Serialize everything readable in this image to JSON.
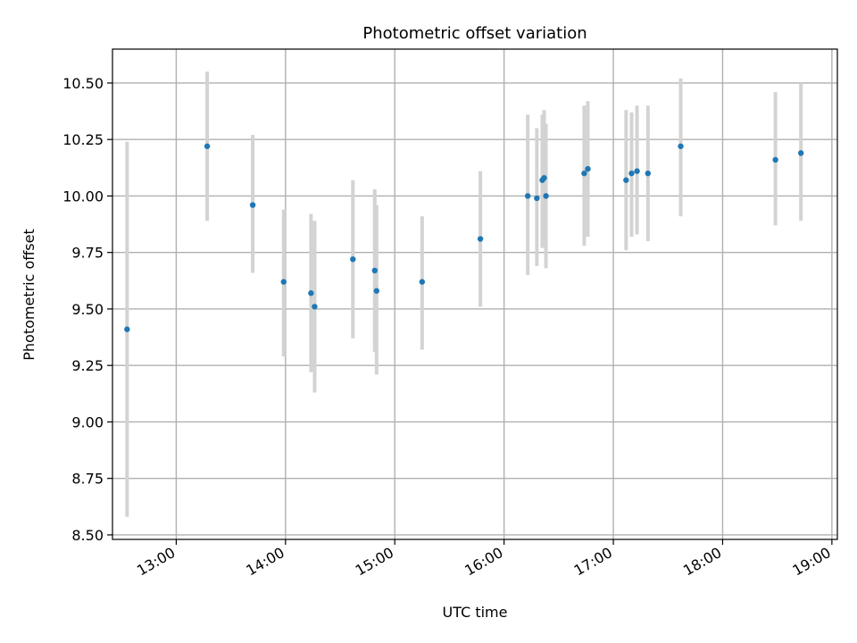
{
  "chart_data": {
    "type": "scatter",
    "title": "Photometric offset variation",
    "xlabel": "UTC time",
    "ylabel": "Photometric offset",
    "x_unit": "hour of day (UTC)",
    "xlim": [
      "12:25",
      "19:03"
    ],
    "ylim": [
      8.48,
      10.65
    ],
    "x_ticks": [
      {
        "value": "13:00",
        "label": "13:00"
      },
      {
        "value": "14:00",
        "label": "14:00"
      },
      {
        "value": "15:00",
        "label": "15:00"
      },
      {
        "value": "16:00",
        "label": "16:00"
      },
      {
        "value": "17:00",
        "label": "17:00"
      },
      {
        "value": "18:00",
        "label": "18:00"
      },
      {
        "value": "19:00",
        "label": "19:00"
      }
    ],
    "y_ticks": [
      {
        "value": 8.5,
        "label": "8.50"
      },
      {
        "value": 8.75,
        "label": "8.75"
      },
      {
        "value": 9.0,
        "label": "9.00"
      },
      {
        "value": 9.25,
        "label": "9.25"
      },
      {
        "value": 9.5,
        "label": "9.50"
      },
      {
        "value": 9.75,
        "label": "9.75"
      },
      {
        "value": 10.0,
        "label": "10.00"
      },
      {
        "value": 10.25,
        "label": "10.25"
      },
      {
        "value": 10.5,
        "label": "10.50"
      }
    ],
    "grid": true,
    "marker_color": "#1f77b4",
    "errorbar_color": "#d3d3d3",
    "points": [
      {
        "x": "12:33",
        "y": 9.41,
        "yerr_low": 8.58,
        "yerr_high": 10.24
      },
      {
        "x": "13:17",
        "y": 10.22,
        "yerr_low": 9.89,
        "yerr_high": 10.55
      },
      {
        "x": "13:42",
        "y": 9.96,
        "yerr_low": 9.66,
        "yerr_high": 10.27
      },
      {
        "x": "13:59",
        "y": 9.62,
        "yerr_low": 9.29,
        "yerr_high": 9.94
      },
      {
        "x": "14:14",
        "y": 9.57,
        "yerr_low": 9.22,
        "yerr_high": 9.92
      },
      {
        "x": "14:16",
        "y": 9.51,
        "yerr_low": 9.13,
        "yerr_high": 9.89
      },
      {
        "x": "14:37",
        "y": 9.72,
        "yerr_low": 9.37,
        "yerr_high": 10.07
      },
      {
        "x": "14:49",
        "y": 9.67,
        "yerr_low": 9.31,
        "yerr_high": 10.03
      },
      {
        "x": "14:50",
        "y": 9.58,
        "yerr_low": 9.21,
        "yerr_high": 9.96
      },
      {
        "x": "15:15",
        "y": 9.62,
        "yerr_low": 9.32,
        "yerr_high": 9.91
      },
      {
        "x": "15:47",
        "y": 9.81,
        "yerr_low": 9.51,
        "yerr_high": 10.11
      },
      {
        "x": "16:13",
        "y": 10.0,
        "yerr_low": 9.65,
        "yerr_high": 10.36
      },
      {
        "x": "16:18",
        "y": 9.99,
        "yerr_low": 9.69,
        "yerr_high": 10.3
      },
      {
        "x": "16:21",
        "y": 10.07,
        "yerr_low": 9.77,
        "yerr_high": 10.36
      },
      {
        "x": "16:22",
        "y": 10.08,
        "yerr_low": 9.79,
        "yerr_high": 10.38
      },
      {
        "x": "16:23",
        "y": 10.0,
        "yerr_low": 9.68,
        "yerr_high": 10.32
      },
      {
        "x": "16:44",
        "y": 10.1,
        "yerr_low": 9.78,
        "yerr_high": 10.4
      },
      {
        "x": "16:46",
        "y": 10.12,
        "yerr_low": 9.82,
        "yerr_high": 10.42
      },
      {
        "x": "17:07",
        "y": 10.07,
        "yerr_low": 9.76,
        "yerr_high": 10.38
      },
      {
        "x": "17:10",
        "y": 10.1,
        "yerr_low": 9.82,
        "yerr_high": 10.37
      },
      {
        "x": "17:13",
        "y": 10.11,
        "yerr_low": 9.83,
        "yerr_high": 10.4
      },
      {
        "x": "17:19",
        "y": 10.1,
        "yerr_low": 9.8,
        "yerr_high": 10.4
      },
      {
        "x": "17:37",
        "y": 10.22,
        "yerr_low": 9.91,
        "yerr_high": 10.52
      },
      {
        "x": "18:29",
        "y": 10.16,
        "yerr_low": 9.87,
        "yerr_high": 10.46
      },
      {
        "x": "18:43",
        "y": 10.19,
        "yerr_low": 9.89,
        "yerr_high": 10.5
      }
    ]
  }
}
